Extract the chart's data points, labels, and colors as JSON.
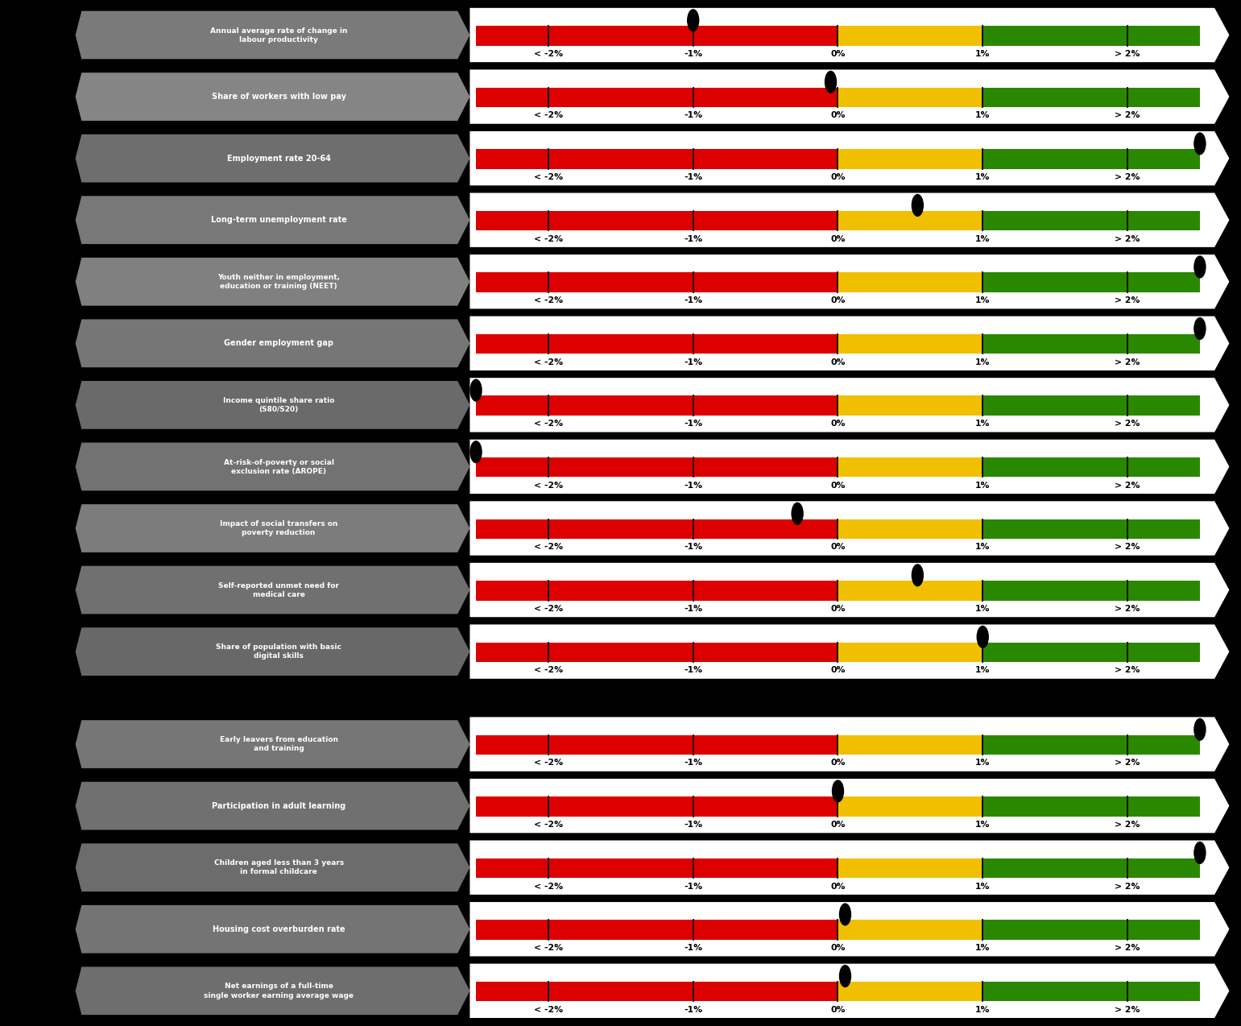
{
  "rows": [
    {
      "label": "Annual average rate of change in\nlabour productivity",
      "dot_value": -1.0
    },
    {
      "label": "Share of workers with low pay",
      "dot_value": -0.05
    },
    {
      "label": "Employment rate 20-64",
      "dot_value": 2.5
    },
    {
      "label": "Long-term unemployment rate",
      "dot_value": 0.55
    },
    {
      "label": "Youth neither in employment,\neducation or training (NEET)",
      "dot_value": 2.5
    },
    {
      "label": "Gender employment gap",
      "dot_value": 2.5
    },
    {
      "label": "Income quintile share ratio\n(S80/S20)",
      "dot_value": -2.5
    },
    {
      "label": "At-risk-of-poverty or social\nexclusion rate (AROPE)",
      "dot_value": -2.5
    },
    {
      "label": "Impact of social transfers on\npoverty reduction",
      "dot_value": -0.28
    },
    {
      "label": "Self-reported unmet need for\nmedical care",
      "dot_value": 0.55
    },
    {
      "label": "Share of population with basic\ndigital skills",
      "dot_value": 1.0
    },
    {
      "label": "Early leavers from education\nand training",
      "dot_value": 2.5
    },
    {
      "label": "Participation in adult learning",
      "dot_value": 0.0
    },
    {
      "label": "Children aged less than 3 years\nin formal childcare",
      "dot_value": 2.5
    },
    {
      "label": "Housing cost overburden rate",
      "dot_value": 0.05
    },
    {
      "label": "Net earnings of a full-time\nsingle worker earning average wage",
      "dot_value": 0.05
    }
  ],
  "scale_min": -2.5,
  "scale_max": 2.5,
  "tick_positions": [
    -2.0,
    -1.0,
    0.0,
    1.0,
    2.0
  ],
  "tick_labels": [
    "< -2%",
    "-1%",
    "0%",
    "1%",
    "> 2%"
  ],
  "bar_color_red": "#dd0000",
  "bar_color_yellow": "#f0c000",
  "bar_color_green": "#2a8800",
  "dot_color": "#000000",
  "bg_color": "#000000",
  "separator_after_row": 10,
  "label_gray": "#787878",
  "label_gray2": "#888888",
  "figure_width": 15.21,
  "figure_height": 12.8
}
